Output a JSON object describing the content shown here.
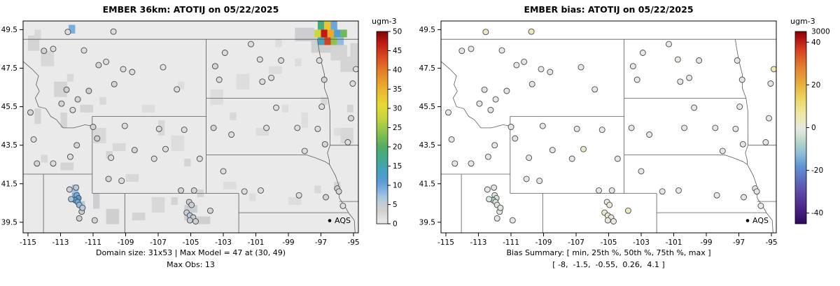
{
  "left_panel": {
    "title": "EMBER 36km: ATOTIJ on 05/22/2025",
    "caption_line1": "Domain size: 31x53 | Max Model = 47 at (30, 49)",
    "caption_line2": "Max Obs: 13",
    "legend_label": "AQS",
    "stats": {
      "domain_size": "31x53",
      "max_model": 47,
      "max_model_at": "(30, 49)",
      "max_obs": 13
    },
    "colorbar": {
      "unit": "ugm-3",
      "min": 0,
      "max": 50,
      "ticks": [
        0,
        5,
        10,
        15,
        20,
        25,
        30,
        35,
        40,
        45,
        50
      ]
    }
  },
  "right_panel": {
    "title": "EMBER bias: ATOTIJ on 05/22/2025",
    "caption_line1": "Bias Summary: [ min, 25th %, 50th %, 75th %, max ]",
    "caption_line2": "[ -8,  -1.5,  -0.55,  0.26,  4.1 ]",
    "legend_label": "AQS",
    "bias_summary": {
      "min": -8,
      "p25": -1.5,
      "median": -0.55,
      "p75": 0.26,
      "max": 4.1
    },
    "colorbar": {
      "unit": "ugm-3",
      "min": -45,
      "max": 45,
      "ticks": [
        -40,
        -20,
        0,
        20,
        40
      ],
      "top_label": "3000"
    }
  },
  "chart_data": {
    "type": "heatmap",
    "subtype": "geographic model raster + AQS site scatter, two panels (model concentration, model bias)",
    "lon_range": [
      -115.3,
      -94.7
    ],
    "lat_range": [
      38.95,
      49.95
    ],
    "x_ticks": [
      -115,
      -113,
      -111,
      -109,
      -107,
      -105,
      -103,
      -101,
      -99,
      -97,
      -95
    ],
    "y_ticks": [
      39.5,
      41.5,
      43.5,
      45.5,
      47.5,
      49.5
    ],
    "site_columns": [
      "lon",
      "lat",
      "model_ugm3",
      "bias_ugm3"
    ],
    "sites": [
      [
        -112.55,
        49.38,
        2,
        2.6
      ],
      [
        -109.75,
        49.4,
        2,
        3.1
      ],
      [
        -114.02,
        48.4,
        3,
        -0.4
      ],
      [
        -113.45,
        48.5,
        2,
        -0.2
      ],
      [
        -111.56,
        48.42,
        2,
        0.1
      ],
      [
        -110.2,
        47.83,
        2,
        -0.3
      ],
      [
        -110.66,
        47.66,
        3,
        -0.6
      ],
      [
        -109.15,
        47.45,
        2,
        0.0
      ],
      [
        -108.6,
        47.3,
        2,
        -0.5
      ],
      [
        -109.7,
        46.67,
        3,
        -0.8
      ],
      [
        -111.26,
        46.32,
        4,
        -1.2
      ],
      [
        -111.94,
        45.88,
        3,
        -0.7
      ],
      [
        -112.63,
        46.38,
        4,
        -1.5
      ],
      [
        -112.94,
        45.66,
        3,
        -0.9
      ],
      [
        -112.25,
        45.33,
        2,
        -0.4
      ],
      [
        -106.7,
        47.55,
        1,
        0.2
      ],
      [
        -105.85,
        46.4,
        2,
        -0.1
      ],
      [
        -101.3,
        48.75,
        2,
        0.3
      ],
      [
        -102.9,
        48.3,
        2,
        -0.2
      ],
      [
        -103.5,
        47.6,
        3,
        -0.5
      ],
      [
        -100.75,
        47.95,
        2,
        0.4
      ],
      [
        -99.45,
        47.9,
        2,
        -0.3
      ],
      [
        -100.05,
        47.0,
        2,
        -0.1
      ],
      [
        -97.1,
        47.9,
        2,
        -0.6
      ],
      [
        -96.8,
        46.9,
        3,
        -0.9
      ],
      [
        -100.6,
        46.8,
        2,
        -0.2
      ],
      [
        -103.25,
        46.9,
        2,
        0.1
      ],
      [
        -94.85,
        47.45,
        2,
        4.1
      ],
      [
        -95.05,
        46.7,
        2,
        -0.4
      ],
      [
        -95.15,
        44.9,
        3,
        -0.7
      ],
      [
        -95.35,
        43.65,
        2,
        -0.3
      ],
      [
        -103.6,
        44.4,
        3,
        -0.5
      ],
      [
        -102.5,
        44.05,
        2,
        -0.2
      ],
      [
        -100.35,
        44.4,
        2,
        0.2
      ],
      [
        -98.45,
        44.4,
        2,
        -0.4
      ],
      [
        -97.2,
        44.35,
        2,
        -0.6
      ],
      [
        -96.75,
        43.55,
        3,
        -1.0
      ],
      [
        -98.0,
        43.2,
        2,
        -0.3
      ],
      [
        -96.95,
        45.5,
        2,
        -0.2
      ],
      [
        -99.75,
        45.45,
        2,
        0.1
      ],
      [
        -111.0,
        44.45,
        3,
        -0.8
      ],
      [
        -110.75,
        43.85,
        4,
        -1.4
      ],
      [
        -109.05,
        44.5,
        2,
        -0.5
      ],
      [
        -106.95,
        44.35,
        2,
        -0.3
      ],
      [
        -105.4,
        44.3,
        2,
        0.0
      ],
      [
        -106.55,
        43.3,
        2,
        2.2
      ],
      [
        -108.45,
        43.25,
        3,
        -0.6
      ],
      [
        -109.9,
        42.85,
        2,
        -0.4
      ],
      [
        -110.05,
        41.75,
        3,
        -0.9
      ],
      [
        -109.25,
        41.65,
        2,
        -0.5
      ],
      [
        -107.25,
        42.8,
        2,
        -0.2
      ],
      [
        -105.6,
        41.15,
        3,
        -0.7
      ],
      [
        -104.8,
        41.15,
        3,
        -0.5
      ],
      [
        -104.45,
        42.8,
        2,
        0.1
      ],
      [
        -112.05,
        41.3,
        6,
        -1.6
      ],
      [
        -112.0,
        40.9,
        9,
        -2.2
      ],
      [
        -111.9,
        40.75,
        11,
        -3.0
      ],
      [
        -112.1,
        40.65,
        13,
        -8.0
      ],
      [
        -111.95,
        40.55,
        10,
        -2.6
      ],
      [
        -111.85,
        40.4,
        8,
        -1.8
      ],
      [
        -112.35,
        40.7,
        7,
        -1.2
      ],
      [
        -111.7,
        40.05,
        5,
        -0.8
      ],
      [
        -111.65,
        40.25,
        6,
        -1.0
      ],
      [
        -112.45,
        41.2,
        4,
        -0.6
      ],
      [
        -111.85,
        39.7,
        4,
        -0.9
      ],
      [
        -110.9,
        39.6,
        3,
        -0.4
      ],
      [
        -105.1,
        40.55,
        4,
        0.8
      ],
      [
        -104.95,
        40.4,
        4,
        1.2
      ],
      [
        -105.25,
        40.0,
        5,
        1.6
      ],
      [
        -105.05,
        39.85,
        6,
        2.0
      ],
      [
        -104.85,
        39.75,
        5,
        1.0
      ],
      [
        -105.05,
        39.6,
        5,
        0.5
      ],
      [
        -104.7,
        39.55,
        4,
        0.3
      ],
      [
        -103.8,
        40.1,
        3,
        3.4
      ],
      [
        -103.0,
        42.15,
        2,
        -0.1
      ],
      [
        -101.7,
        41.1,
        2,
        0.0
      ],
      [
        -100.7,
        41.15,
        2,
        0.3
      ],
      [
        -98.35,
        40.9,
        2,
        -0.2
      ],
      [
        -96.7,
        40.8,
        3,
        -0.8
      ],
      [
        -96.0,
        41.25,
        4,
        -1.1
      ],
      [
        -95.9,
        41.1,
        3,
        -0.6
      ],
      [
        -95.65,
        40.35,
        2,
        0.0
      ],
      [
        -114.85,
        45.2,
        3,
        -0.5
      ],
      [
        -114.65,
        43.8,
        2,
        -0.4
      ],
      [
        -114.45,
        42.55,
        3,
        -0.6
      ],
      [
        -113.45,
        42.55,
        2,
        -0.1
      ],
      [
        -112.4,
        42.9,
        2,
        -0.3
      ],
      [
        -112.0,
        43.5,
        3,
        -0.7
      ]
    ],
    "raster_columns": [
      "lon",
      "lat_bottom",
      "width_deg",
      "height_deg",
      "value_ugm3"
    ],
    "raster_base_value": 0,
    "raster_patches": [
      [
        -115.0,
        48.4,
        0.7,
        0.8,
        3
      ],
      [
        -114.6,
        49.0,
        0.4,
        0.5,
        2.5
      ],
      [
        -114.2,
        47.6,
        0.8,
        0.8,
        2.5
      ],
      [
        -113.4,
        46.0,
        0.8,
        0.8,
        3
      ],
      [
        -112.6,
        46.8,
        0.4,
        0.4,
        2.5
      ],
      [
        -111.8,
        45.2,
        0.8,
        0.4,
        3
      ],
      [
        -110.6,
        45.6,
        0.4,
        0.4,
        2.5
      ],
      [
        -113.0,
        44.4,
        0.4,
        0.8,
        3
      ],
      [
        -114.6,
        44.6,
        0.4,
        0.8,
        3
      ],
      [
        -114.2,
        42.6,
        0.4,
        0.4,
        2.5
      ],
      [
        -113.0,
        42.2,
        0.8,
        0.4,
        3
      ],
      [
        -111.0,
        43.6,
        0.8,
        0.8,
        2.5
      ],
      [
        -110.2,
        42.8,
        0.4,
        0.4,
        3
      ],
      [
        -109.8,
        43.2,
        0.8,
        0.4,
        2.5
      ],
      [
        -107.0,
        44.0,
        0.4,
        0.8,
        2.5
      ],
      [
        -106.2,
        43.2,
        0.8,
        0.8,
        2
      ],
      [
        -105.4,
        42.4,
        0.4,
        0.4,
        3
      ],
      [
        -108.0,
        45.2,
        0.8,
        0.4,
        2
      ],
      [
        -105.8,
        46.4,
        0.4,
        0.4,
        2
      ],
      [
        -103.8,
        45.6,
        0.8,
        0.8,
        2
      ],
      [
        -102.6,
        44.8,
        0.4,
        0.4,
        2.5
      ],
      [
        -101.0,
        44.0,
        0.8,
        0.4,
        2
      ],
      [
        -99.4,
        45.2,
        0.4,
        0.4,
        2
      ],
      [
        -98.2,
        44.4,
        0.4,
        0.8,
        2
      ],
      [
        -97.0,
        45.6,
        0.4,
        0.4,
        2.5
      ],
      [
        -96.2,
        44.0,
        0.4,
        0.4,
        2
      ],
      [
        -100.2,
        47.2,
        0.8,
        0.4,
        2
      ],
      [
        -98.6,
        47.6,
        0.4,
        0.4,
        2
      ],
      [
        -95.4,
        45.2,
        0.4,
        0.4,
        3
      ],
      [
        -95.8,
        43.6,
        0.8,
        0.8,
        2.5
      ],
      [
        -104.6,
        40.8,
        0.4,
        0.4,
        3
      ],
      [
        -105.4,
        39.6,
        0.4,
        0.8,
        4
      ],
      [
        -105.0,
        40.0,
        0.4,
        0.4,
        4.5
      ],
      [
        -104.6,
        39.4,
        0.8,
        0.4,
        3.5
      ],
      [
        -106.2,
        40.4,
        0.4,
        0.4,
        3
      ],
      [
        -107.4,
        40.0,
        0.8,
        0.8,
        2.5
      ],
      [
        -108.6,
        39.6,
        0.8,
        0.4,
        3
      ],
      [
        -110.2,
        39.4,
        0.8,
        0.8,
        3.5
      ],
      [
        -111.0,
        40.2,
        0.4,
        0.8,
        4
      ],
      [
        -109.0,
        41.6,
        0.8,
        0.4,
        2.5
      ],
      [
        -103.0,
        41.2,
        0.8,
        0.4,
        2
      ],
      [
        -101.4,
        40.6,
        0.4,
        0.4,
        2
      ],
      [
        -99.0,
        40.4,
        0.8,
        0.4,
        2
      ],
      [
        -97.4,
        41.0,
        0.4,
        0.4,
        2.5
      ],
      [
        -96.2,
        41.2,
        0.4,
        0.4,
        3
      ],
      [
        -102.2,
        46.4,
        0.8,
        0.8,
        2
      ],
      [
        -99.8,
        48.6,
        0.4,
        0.4,
        2
      ],
      [
        -112.3,
        40.6,
        0.45,
        0.45,
        9
      ],
      [
        -112.3,
        41.05,
        0.4,
        0.4,
        7
      ],
      [
        -111.9,
        40.2,
        0.4,
        0.4,
        6
      ],
      [
        -112.5,
        49.3,
        0.4,
        0.45,
        9
      ],
      [
        -98.6,
        48.9,
        1.2,
        0.7,
        4
      ],
      [
        -97.6,
        48.3,
        1.6,
        0.8,
        3.5
      ],
      [
        -96.4,
        47.9,
        1.0,
        0.8,
        3
      ],
      [
        -95.8,
        47.3,
        0.8,
        0.8,
        3
      ],
      [
        -95.2,
        47.6,
        0.5,
        1.2,
        3
      ],
      [
        -97.2,
        49.5,
        0.4,
        0.45,
        18
      ],
      [
        -96.8,
        49.5,
        0.4,
        0.45,
        33
      ],
      [
        -96.4,
        49.5,
        0.4,
        0.45,
        10
      ],
      [
        -97.4,
        49.1,
        0.4,
        0.4,
        28
      ],
      [
        -97.0,
        49.1,
        0.4,
        0.4,
        47
      ],
      [
        -96.6,
        49.1,
        0.4,
        0.4,
        36
      ],
      [
        -96.2,
        49.1,
        0.4,
        0.4,
        12
      ],
      [
        -95.8,
        49.1,
        0.4,
        0.4,
        22
      ],
      [
        -97.2,
        48.7,
        0.4,
        0.4,
        14
      ],
      [
        -96.8,
        48.7,
        0.4,
        0.4,
        44
      ],
      [
        -96.4,
        48.7,
        0.4,
        0.4,
        24
      ],
      [
        -96.0,
        48.7,
        0.4,
        0.4,
        8
      ]
    ],
    "model_colormap_stops": [
      [
        0,
        "#e9e9e9"
      ],
      [
        2,
        "#dddddd"
      ],
      [
        3.5,
        "#cfcfcf"
      ],
      [
        5,
        "#c6cdd4"
      ],
      [
        7,
        "#a5c6e2"
      ],
      [
        9,
        "#7aaedd"
      ],
      [
        11,
        "#5b9bd5"
      ],
      [
        13,
        "#49a0c8"
      ],
      [
        16,
        "#3fa89e"
      ],
      [
        20,
        "#4fae62"
      ],
      [
        24,
        "#8fc34c"
      ],
      [
        28,
        "#cdd63c"
      ],
      [
        31,
        "#e8d832"
      ],
      [
        35,
        "#eab42e"
      ],
      [
        39,
        "#e58728"
      ],
      [
        43,
        "#dc4f20"
      ],
      [
        47,
        "#c01a14"
      ],
      [
        50,
        "#7f0606"
      ]
    ],
    "bias_colormap_stops": [
      [
        -45,
        "#2f0a5b"
      ],
      [
        -38,
        "#4a2386"
      ],
      [
        -30,
        "#5f4aa8"
      ],
      [
        -24,
        "#5e6fbe"
      ],
      [
        -18,
        "#5f94d4"
      ],
      [
        -12,
        "#8fc0d8"
      ],
      [
        -8,
        "#aad0c8"
      ],
      [
        -4,
        "#cde0d2"
      ],
      [
        -1,
        "#e2e6e0"
      ],
      [
        0,
        "#e8e8e6"
      ],
      [
        1,
        "#eae8d8"
      ],
      [
        3,
        "#ece9bd"
      ],
      [
        8,
        "#efe596"
      ],
      [
        14,
        "#edd45e"
      ],
      [
        20,
        "#e8b23e"
      ],
      [
        28,
        "#e2822e"
      ],
      [
        36,
        "#d8431f"
      ],
      [
        42,
        "#b01010"
      ],
      [
        45,
        "#7a0403"
      ]
    ]
  }
}
